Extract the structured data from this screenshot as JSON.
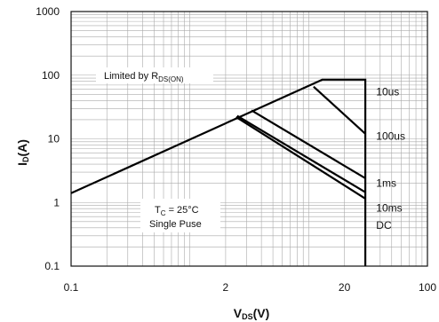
{
  "chart_data": {
    "type": "line",
    "x_scale": "log",
    "y_scale": "log",
    "xlim": [
      0.1,
      100
    ],
    "ylim": [
      0.1,
      1000
    ],
    "grid": true,
    "legend": "none",
    "title": "",
    "xlabel_main": "V",
    "xlabel_sub": "DS",
    "xlabel_tail": "(V)",
    "ylabel_main": "I",
    "ylabel_sub": "D",
    "ylabel_tail": "(A)",
    "x_ticks": [
      {
        "value": 0.1,
        "label": "0.1"
      },
      {
        "value": 2,
        "label": "2"
      },
      {
        "value": 20,
        "label": "20"
      },
      {
        "value": 100,
        "label": "100"
      }
    ],
    "y_ticks": [
      {
        "value": 0.1,
        "label": "0.1"
      },
      {
        "value": 1,
        "label": "1"
      },
      {
        "value": 10,
        "label": "10"
      },
      {
        "value": 100,
        "label": "100"
      },
      {
        "value": 1000,
        "label": "1000"
      }
    ],
    "annotations": {
      "rds_main": "Limited by R",
      "rds_sub": "DS(ON)",
      "tc_main": "T",
      "tc_sub": "C",
      "tc_tail": " = 25°C",
      "pulse": "Single Puse"
    },
    "series": [
      {
        "label": "10us",
        "points": [
          [
            0.1,
            1.4
          ],
          [
            13,
            85
          ],
          [
            30,
            85
          ],
          [
            30,
            0.1
          ]
        ]
      },
      {
        "label": "100us",
        "points": [
          [
            11,
            66
          ],
          [
            30,
            12
          ]
        ]
      },
      {
        "label": "1ms",
        "points": [
          [
            3.3,
            28
          ],
          [
            30,
            2.4
          ]
        ]
      },
      {
        "label": "10ms",
        "points": [
          [
            2.5,
            23
          ],
          [
            30,
            1.45
          ]
        ]
      },
      {
        "label": "DC",
        "points": [
          [
            2.45,
            22
          ],
          [
            30,
            1.15
          ]
        ]
      }
    ],
    "series_label_positions": [
      {
        "label": "10us",
        "x": 37,
        "y": 55
      },
      {
        "label": "100us",
        "x": 37,
        "y": 11
      },
      {
        "label": "1ms",
        "x": 37,
        "y": 2.0
      },
      {
        "label": "10ms",
        "x": 37,
        "y": 0.82
      },
      {
        "label": "DC",
        "x": 37,
        "y": 0.44
      }
    ]
  }
}
